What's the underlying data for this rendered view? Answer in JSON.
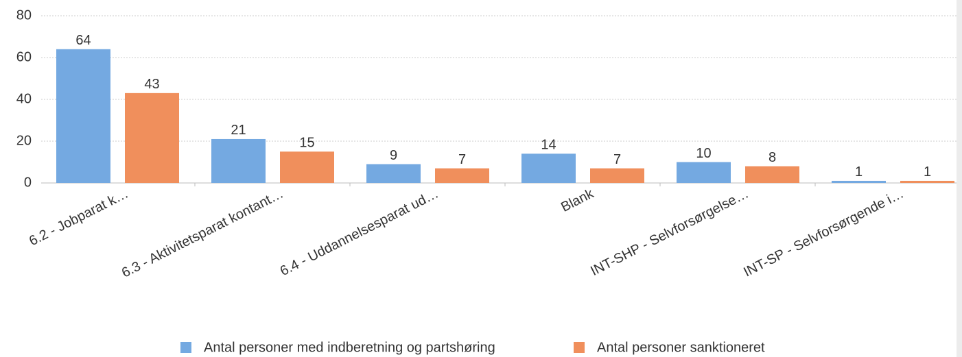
{
  "chart_data": {
    "type": "bar",
    "categories": [
      "6.2 - Jobparat k…",
      "6.3 - Aktivitetsparat kontant…",
      "6.4 - Uddannelsesparat ud…",
      "Blank",
      "INT-SHP - Selvforsørgelse…",
      "INT-SP - Selvforsørgende i…"
    ],
    "series": [
      {
        "name": "Antal personer med indberetning og partshøring",
        "color": "#74a9e1",
        "values": [
          64,
          21,
          9,
          14,
          10,
          1
        ]
      },
      {
        "name": "Antal personer sanktioneret",
        "color": "#f08f5c",
        "values": [
          43,
          15,
          7,
          7,
          8,
          1
        ]
      }
    ],
    "ylim": [
      0,
      80
    ],
    "yticks": [
      0,
      20,
      40,
      60,
      80
    ],
    "grid": true,
    "legend": "bottom"
  }
}
